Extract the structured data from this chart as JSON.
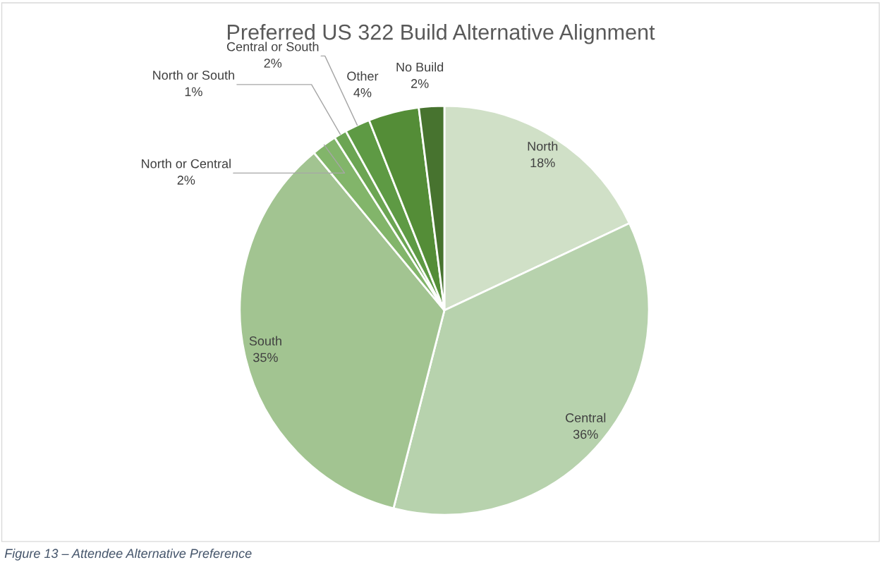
{
  "chart_data": {
    "type": "pie",
    "title": "Preferred US 322 Build Alternative Alignment",
    "categories": [
      "North",
      "Central",
      "South",
      "North or Central",
      "North or South",
      "Central or South",
      "Other",
      "No Build"
    ],
    "values": [
      18,
      36,
      35,
      2,
      1,
      2,
      4,
      2
    ],
    "colors": [
      "#d0e0c7",
      "#b7d2ad",
      "#a2c491",
      "#82b56a",
      "#6ca553",
      "#5e9a44",
      "#548d37",
      "#47732f"
    ],
    "value_labels": [
      "18%",
      "36%",
      "35%",
      "2%",
      "1%",
      "2%",
      "4%",
      "2%"
    ],
    "annotations": [
      "Figure 13 – Attendee Alternative Preference"
    ]
  }
}
